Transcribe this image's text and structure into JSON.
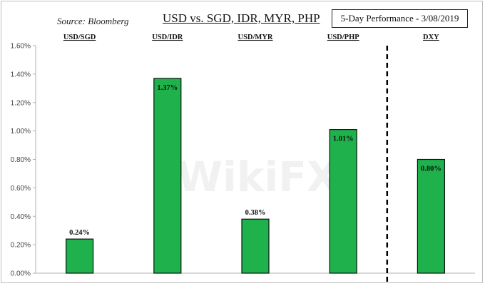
{
  "header": {
    "source": "Source: Bloomberg",
    "title": "USD vs. SGD, IDR, MYR, PHP",
    "subtitle": "5-Day Performance - 3/08/2019"
  },
  "watermark": "WikiFX",
  "colors": {
    "bar": "#1fb14b",
    "bar_stroke": "#111111",
    "axis": "#b0b0b0",
    "divider": "#000000"
  },
  "chart_data": {
    "type": "bar",
    "title": "USD vs. SGD, IDR, MYR, PHP",
    "subtitle": "5-Day Performance - 3/08/2019",
    "categories": [
      "USD/SGD",
      "USD/IDR",
      "USD/MYR",
      "USD/PHP",
      "DXY"
    ],
    "values": [
      0.24,
      1.37,
      0.38,
      1.01,
      0.8
    ],
    "data_labels": [
      "0.24%",
      "1.37%",
      "0.38%",
      "1.01%",
      "0.80%"
    ],
    "ylim": [
      0,
      1.6
    ],
    "yticks": [
      0,
      0.2,
      0.4,
      0.6,
      0.8,
      1.0,
      1.2,
      1.4,
      1.6
    ],
    "ytick_labels": [
      "0.00%",
      "0.20%",
      "0.40%",
      "0.60%",
      "0.80%",
      "1.00%",
      "1.20%",
      "1.40%",
      "1.60%"
    ],
    "xlabel": "",
    "ylabel": "",
    "grid": false,
    "legend": "none",
    "category_labels_position": "top",
    "divider_before": "DXY"
  }
}
